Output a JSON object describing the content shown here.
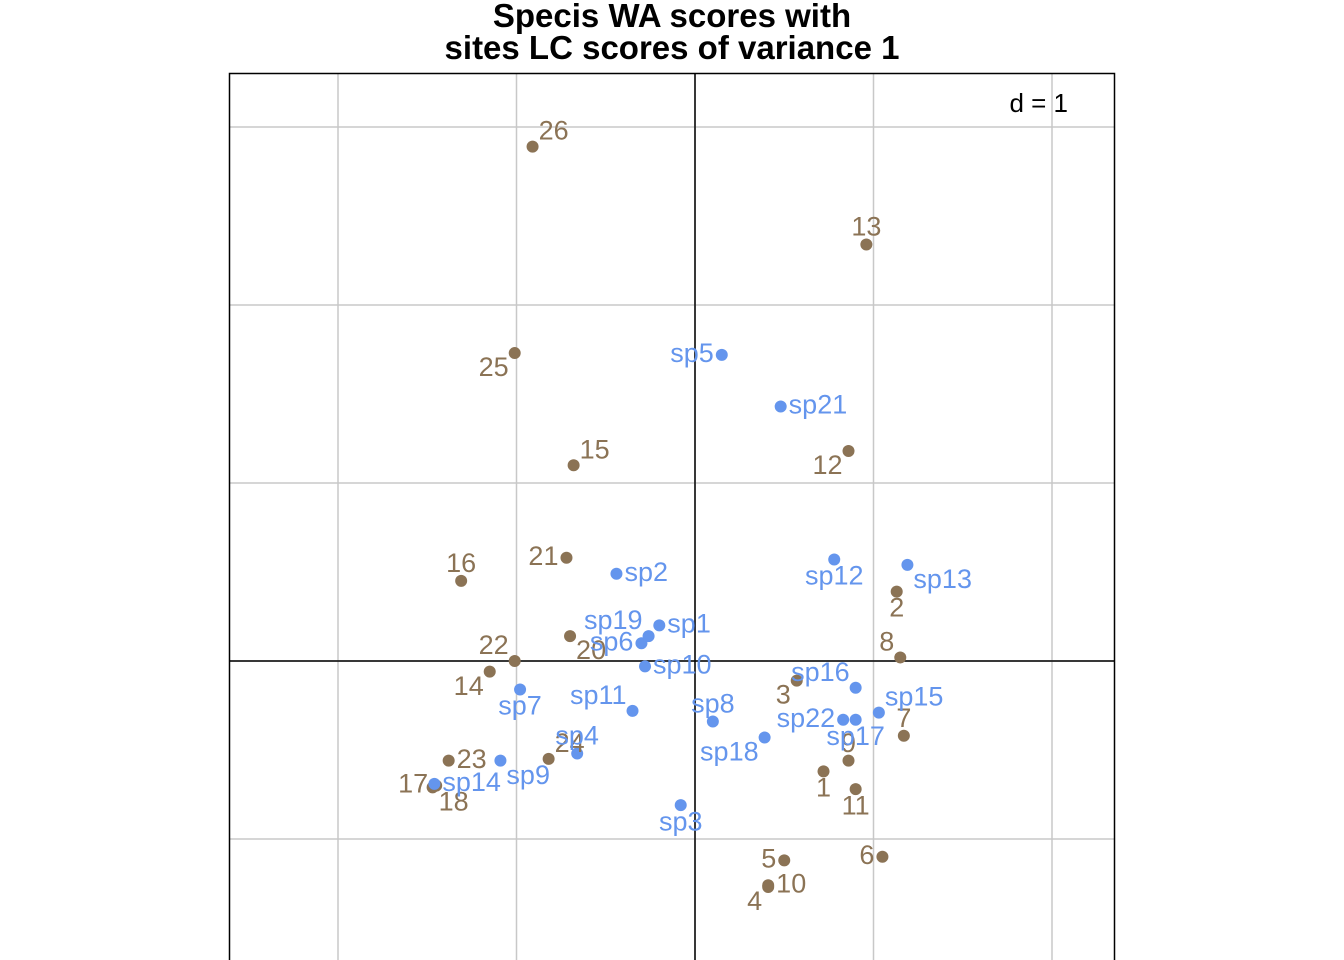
{
  "title_lines": [
    "Specis WA scores with",
    "sites LC scores of variance 1"
  ],
  "scale_label": "d = 1",
  "colors": {
    "sites": "#8B7355",
    "species": "#6495ED",
    "grid": "#C8C8C8",
    "axis": "#000000",
    "frame": "#000000"
  },
  "chart_data": {
    "type": "scatter",
    "title": "Specis WA scores with sites LC scores of variance 1",
    "xlim": [
      -2.63,
      2.37
    ],
    "ylim": [
      -1.67,
      3.31
    ],
    "grid": true,
    "grid_step": 1,
    "zero_lines": true,
    "series": [
      {
        "kind": "sites",
        "points": [
          {
            "label": "1",
            "x": 0.72,
            "y": -0.62,
            "anchor": "below"
          },
          {
            "label": "2",
            "x": 1.13,
            "y": 0.39,
            "anchor": "below"
          },
          {
            "label": "3",
            "x": 0.57,
            "y": -0.11,
            "anchor": "below-left"
          },
          {
            "label": "4",
            "x": 0.41,
            "y": -1.27,
            "anchor": "below-left"
          },
          {
            "label": "5",
            "x": 0.5,
            "y": -1.12,
            "anchor": "left"
          },
          {
            "label": "6",
            "x": 1.05,
            "y": -1.1,
            "anchor": "left"
          },
          {
            "label": "7",
            "x": 1.17,
            "y": -0.42,
            "anchor": "above"
          },
          {
            "label": "8",
            "x": 1.15,
            "y": 0.02,
            "anchor": "above-left"
          },
          {
            "label": "9",
            "x": 0.86,
            "y": -0.56,
            "anchor": "above"
          },
          {
            "label": "10",
            "x": 0.41,
            "y": -1.26,
            "anchor": "right"
          },
          {
            "label": "11",
            "x": 0.9,
            "y": -0.72,
            "anchor": "below"
          },
          {
            "label": "12",
            "x": 0.86,
            "y": 1.18,
            "anchor": "below-left"
          },
          {
            "label": "13",
            "x": 0.96,
            "y": 2.34,
            "anchor": "above"
          },
          {
            "label": "14",
            "x": -1.15,
            "y": -0.06,
            "anchor": "below-left"
          },
          {
            "label": "15",
            "x": -0.68,
            "y": 1.1,
            "anchor": "above-right"
          },
          {
            "label": "16",
            "x": -1.31,
            "y": 0.45,
            "anchor": "above"
          },
          {
            "label": "17",
            "x": -1.45,
            "y": -0.7,
            "anchor": "left"
          },
          {
            "label": "18",
            "x": -1.47,
            "y": -0.71,
            "anchor": "below-right"
          },
          {
            "label": "20",
            "x": -0.7,
            "y": 0.14,
            "anchor": "below-right"
          },
          {
            "label": "21",
            "x": -0.72,
            "y": 0.58,
            "anchor": "left"
          },
          {
            "label": "22",
            "x": -1.01,
            "y": 0.0,
            "anchor": "above-left"
          },
          {
            "label": "23",
            "x": -1.38,
            "y": -0.56,
            "anchor": "right"
          },
          {
            "label": "24",
            "x": -0.82,
            "y": -0.55,
            "anchor": "above-right"
          },
          {
            "label": "25",
            "x": -1.01,
            "y": 1.73,
            "anchor": "below-left"
          },
          {
            "label": "26",
            "x": -0.91,
            "y": 2.89,
            "anchor": "above-right"
          }
        ]
      },
      {
        "kind": "species",
        "points": [
          {
            "label": "sp1",
            "x": -0.2,
            "y": 0.2,
            "anchor": "right"
          },
          {
            "label": "sp2",
            "x": -0.44,
            "y": 0.49,
            "anchor": "right"
          },
          {
            "label": "sp3",
            "x": -0.08,
            "y": -0.81,
            "anchor": "below"
          },
          {
            "label": "sp4",
            "x": -0.66,
            "y": -0.52,
            "anchor": "above"
          },
          {
            "label": "sp5",
            "x": 0.15,
            "y": 1.72,
            "anchor": "left"
          },
          {
            "label": "sp6",
            "x": -0.3,
            "y": 0.1,
            "anchor": "left"
          },
          {
            "label": "sp7",
            "x": -0.98,
            "y": -0.16,
            "anchor": "below"
          },
          {
            "label": "sp8",
            "x": 0.1,
            "y": -0.34,
            "anchor": "above"
          },
          {
            "label": "sp9",
            "x": -1.09,
            "y": -0.56,
            "anchor": "below-right"
          },
          {
            "label": "sp10",
            "x": -0.28,
            "y": -0.03,
            "anchor": "right"
          },
          {
            "label": "sp11",
            "x": -0.35,
            "y": -0.28,
            "anchor": "above-left"
          },
          {
            "label": "sp12",
            "x": 0.78,
            "y": 0.57,
            "anchor": "below"
          },
          {
            "label": "sp13",
            "x": 1.19,
            "y": 0.54,
            "anchor": "below-right"
          },
          {
            "label": "sp14",
            "x": -1.46,
            "y": -0.69,
            "anchor": "right"
          },
          {
            "label": "sp15",
            "x": 1.03,
            "y": -0.29,
            "anchor": "above-right"
          },
          {
            "label": "sp16",
            "x": 0.9,
            "y": -0.15,
            "anchor": "above-left"
          },
          {
            "label": "sp17",
            "x": 0.9,
            "y": -0.33,
            "anchor": "below"
          },
          {
            "label": "sp18",
            "x": 0.39,
            "y": -0.43,
            "anchor": "below-left"
          },
          {
            "label": "sp19",
            "x": -0.26,
            "y": 0.14,
            "anchor": "above-left"
          },
          {
            "label": "sp21",
            "x": 0.48,
            "y": 1.43,
            "anchor": "right"
          },
          {
            "label": "sp22",
            "x": 0.83,
            "y": -0.33,
            "anchor": "left"
          }
        ]
      }
    ]
  }
}
